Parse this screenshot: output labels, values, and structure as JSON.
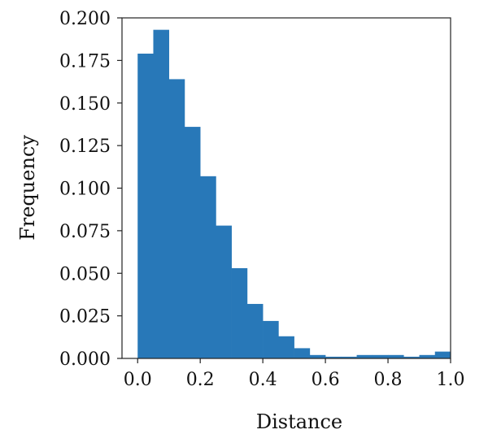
{
  "chart_data": {
    "type": "bar",
    "title": "",
    "xlabel": "Distance",
    "ylabel": "Frequency",
    "xlim": [
      -0.05,
      1.0
    ],
    "ylim": [
      0.0,
      0.2
    ],
    "grid": false,
    "bar_color": "#2878b8",
    "bin_width": 0.05,
    "bin_starts": [
      0.0,
      0.05,
      0.1,
      0.15,
      0.2,
      0.25,
      0.3,
      0.35,
      0.4,
      0.45,
      0.5,
      0.55,
      0.6,
      0.65,
      0.7,
      0.75,
      0.8,
      0.85,
      0.9,
      0.95
    ],
    "values": [
      0.179,
      0.193,
      0.164,
      0.136,
      0.107,
      0.078,
      0.053,
      0.032,
      0.022,
      0.013,
      0.006,
      0.002,
      0.001,
      0.001,
      0.002,
      0.002,
      0.002,
      0.001,
      0.002,
      0.004
    ],
    "x_ticks": [
      0.0,
      0.2,
      0.4,
      0.6,
      0.8,
      1.0
    ],
    "x_tick_labels": [
      "0.0",
      "0.2",
      "0.4",
      "0.6",
      "0.8",
      "1.0"
    ],
    "y_ticks": [
      0.0,
      0.025,
      0.05,
      0.075,
      0.1,
      0.125,
      0.15,
      0.175,
      0.2
    ],
    "y_tick_labels": [
      "0.000",
      "0.025",
      "0.050",
      "0.075",
      "0.100",
      "0.125",
      "0.150",
      "0.175",
      "0.200"
    ]
  }
}
